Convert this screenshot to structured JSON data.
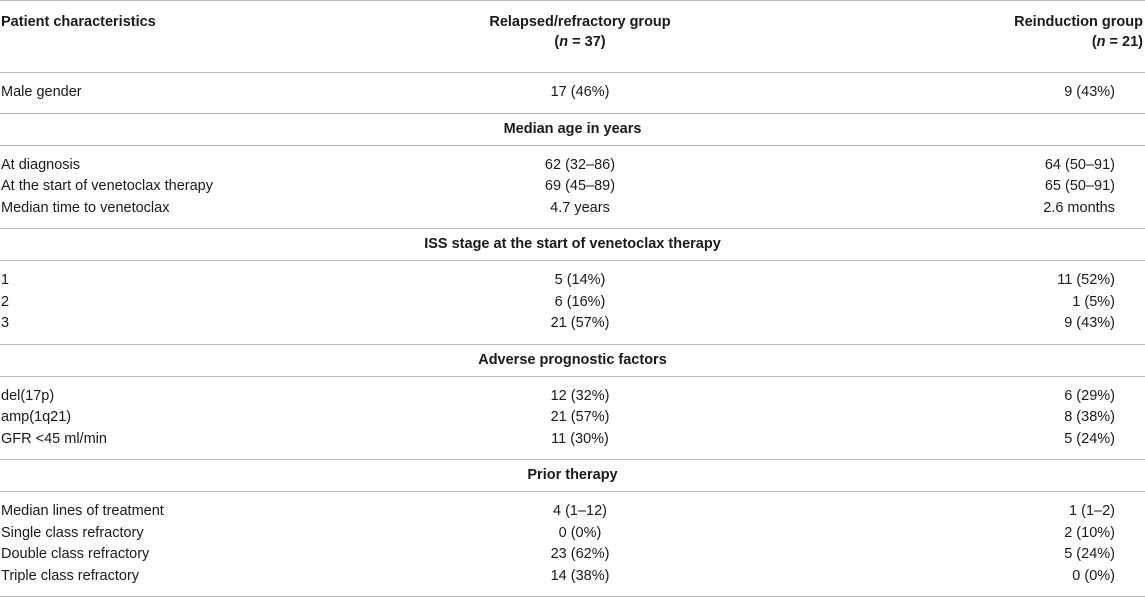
{
  "header": {
    "col1": "Patient characteristics",
    "col2_line1": "Relapsed/refractory group",
    "col2_n_prefix": "(",
    "col2_n_var": "n",
    "col2_n_suffix": " = 37)",
    "col3_line1": "Reinduction group",
    "col3_n_prefix": "(",
    "col3_n_var": "n",
    "col3_n_suffix": " = 21)"
  },
  "rows": {
    "male_gender": {
      "label": "Male gender",
      "rr": "17 (46%)",
      "ri": "9 (43%)"
    },
    "sec_age": "Median age in years",
    "at_diagnosis": {
      "label": "At diagnosis",
      "rr": "62 (32–86)",
      "ri": "64 (50–91)"
    },
    "at_start": {
      "label": "At the start of venetoclax therapy",
      "rr": "69 (45–89)",
      "ri": "65 (50–91)"
    },
    "median_time": {
      "label": "Median time to venetoclax",
      "rr": "4.7 years",
      "ri": "2.6 months"
    },
    "sec_iss": "ISS stage at the start of venetoclax therapy",
    "iss1": {
      "label": "1",
      "rr": "5 (14%)",
      "ri": "11 (52%)"
    },
    "iss2": {
      "label": "2",
      "rr": "6 (16%)",
      "ri": "1 (5%)"
    },
    "iss3": {
      "label": "3",
      "rr": "21 (57%)",
      "ri": "9 (43%)"
    },
    "sec_adverse": "Adverse prognostic factors",
    "del17p": {
      "label": "del(17p)",
      "rr": "12 (32%)",
      "ri": "6 (29%)"
    },
    "amp1q21": {
      "label": "amp(1q21)",
      "rr": "21 (57%)",
      "ri": "8 (38%)"
    },
    "gfr": {
      "label": "GFR <45 ml/min",
      "rr": "11 (30%)",
      "ri": "5 (24%)"
    },
    "sec_prior": "Prior therapy",
    "median_lines": {
      "label": "Median lines of treatment",
      "rr": "4 (1–12)",
      "ri": "1 (1–2)"
    },
    "single_class": {
      "label": "Single class refractory",
      "rr": "0 (0%)",
      "ri": "2 (10%)"
    },
    "double_class": {
      "label": "Double class refractory",
      "rr": "23 (62%)",
      "ri": "5 (24%)"
    },
    "triple_class": {
      "label": "Triple class refractory",
      "rr": "14 (38%)",
      "ri": "0 (0%)"
    }
  }
}
